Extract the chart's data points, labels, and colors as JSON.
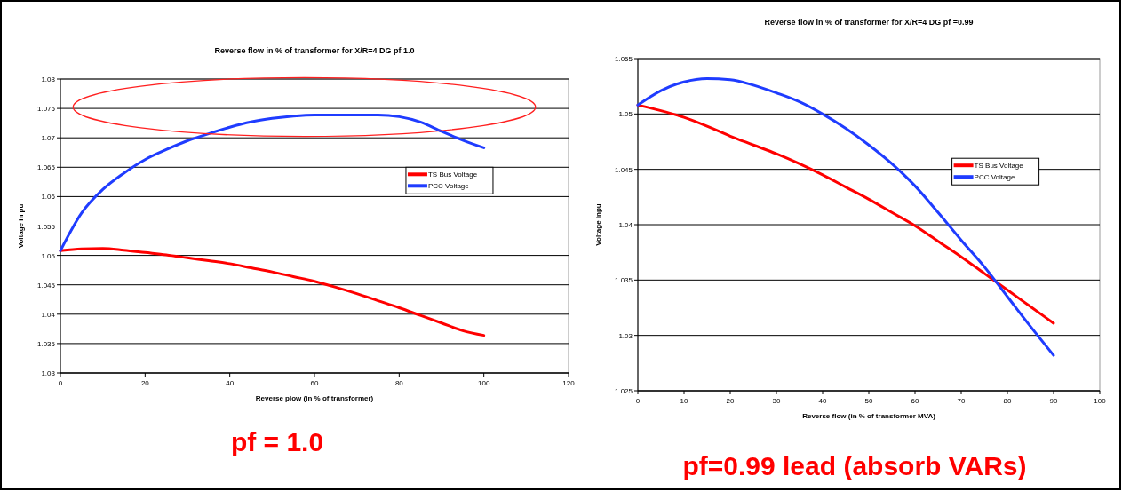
{
  "chart_data": [
    {
      "type": "line",
      "title": "Reverse flow in % of transformer for X/R=4 DG pf 1.0",
      "xlabel": "Reverse plow (in % of transformer)",
      "ylabel": "Voltage in pu",
      "annotations": [
        "pf = 1.0"
      ],
      "x": [
        0,
        5,
        10,
        15,
        20,
        25,
        30,
        35,
        40,
        45,
        50,
        55,
        60,
        65,
        70,
        75,
        80,
        85,
        90,
        95,
        100
      ],
      "series": [
        {
          "name": "TS Bus Voltage",
          "color": "#ff0000",
          "values": [
            1.0508,
            1.0511,
            1.0512,
            1.0509,
            1.0505,
            1.0501,
            1.0496,
            1.0491,
            1.0486,
            1.0479,
            1.0472,
            1.0464,
            1.0456,
            1.0446,
            1.0435,
            1.0423,
            1.0411,
            1.0398,
            1.0385,
            1.0372,
            1.0364
          ]
        },
        {
          "name": "PCC Voltage",
          "color": "#1f3cff",
          "values": [
            1.0508,
            1.0572,
            1.0612,
            1.064,
            1.0663,
            1.068,
            1.0695,
            1.0707,
            1.0718,
            1.0727,
            1.0733,
            1.0737,
            1.0739,
            1.0739,
            1.0739,
            1.0739,
            1.0736,
            1.0727,
            1.0711,
            1.0696,
            1.0683
          ]
        }
      ],
      "xlim": [
        0,
        120
      ],
      "xticks": [
        0,
        20,
        40,
        60,
        80,
        100,
        120
      ],
      "ylim": [
        1.03,
        1.08
      ],
      "yticks": [
        1.03,
        1.035,
        1.04,
        1.045,
        1.05,
        1.055,
        1.06,
        1.065,
        1.07,
        1.075,
        1.08
      ],
      "grid": "y",
      "legend": "right",
      "marker": "none",
      "line_style": "solid"
    },
    {
      "type": "line",
      "title": "Reverse flow in % of transformer for X/R=4 DG pf =0.99",
      "xlabel": "Reverse flow (in % of transformer MVA)",
      "ylabel": "Voltage inpu",
      "annotations": [
        "pf=0.99 lead (absorb VARs)"
      ],
      "x": [
        0,
        5,
        10,
        15,
        20,
        25,
        30,
        35,
        40,
        45,
        50,
        55,
        60,
        65,
        70,
        75,
        80,
        85,
        90
      ],
      "series": [
        {
          "name": "TS Bus Voltage",
          "color": "#ff0000",
          "values": [
            1.0508,
            1.0503,
            1.0497,
            1.0489,
            1.048,
            1.0472,
            1.0464,
            1.0455,
            1.0445,
            1.0434,
            1.0423,
            1.0411,
            1.0399,
            1.0385,
            1.0371,
            1.0356,
            1.0341,
            1.0326,
            1.0311
          ]
        },
        {
          "name": "PCC Voltage",
          "color": "#1f3cff",
          "values": [
            1.0508,
            1.0521,
            1.0529,
            1.0532,
            1.0531,
            1.0526,
            1.0519,
            1.0511,
            1.05,
            1.0487,
            1.0472,
            1.0455,
            1.0435,
            1.0411,
            1.0386,
            1.0362,
            1.0335,
            1.0308,
            1.0282
          ]
        }
      ],
      "xlim": [
        0,
        100
      ],
      "xticks": [
        0,
        10,
        20,
        30,
        40,
        50,
        60,
        70,
        80,
        90,
        100
      ],
      "ylim": [
        1.025,
        1.055
      ],
      "yticks": [
        1.025,
        1.03,
        1.035,
        1.04,
        1.045,
        1.05,
        1.055
      ],
      "grid": "y",
      "legend": "right",
      "marker": "none",
      "line_style": "solid"
    }
  ]
}
